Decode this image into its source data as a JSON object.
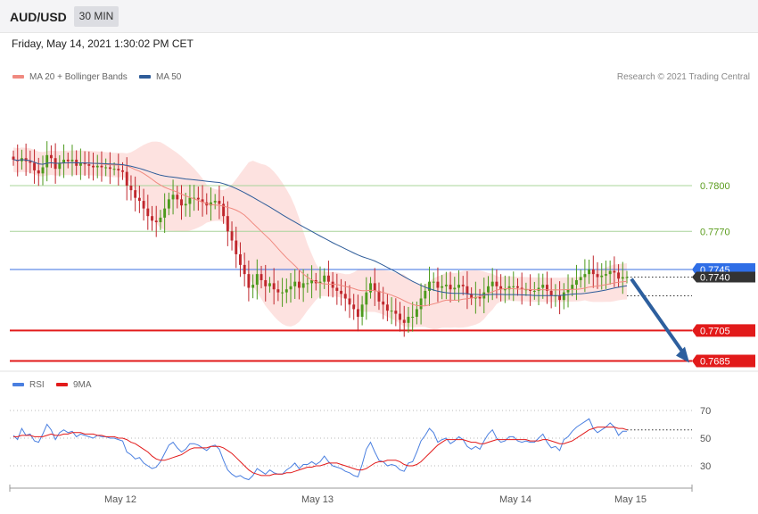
{
  "header": {
    "symbol": "AUD/USD",
    "timeframe": "30 MIN"
  },
  "datetime": "Friday, May 14, 2021 1:30:02 PM CET",
  "legend_main": [
    {
      "label": "MA 20 + Bollinger Bands",
      "color": "#f08a80",
      "icon": "ma20-swatch"
    },
    {
      "label": "MA 50",
      "color": "#2e5c99",
      "icon": "ma50-swatch"
    }
  ],
  "copyright": "Research © 2021 Trading Central",
  "legend_rsi": [
    {
      "label": "RSI",
      "color": "#4a7fe0",
      "icon": "rsi-swatch"
    },
    {
      "label": "9MA",
      "color": "#e21a1a",
      "icon": "rsi-ma-swatch"
    }
  ],
  "chart_data": [
    {
      "type": "candlestick",
      "ylim": [
        0.7682,
        0.7837
      ],
      "xlabel": "",
      "ylabel": "",
      "x_tick_labels": [
        "May 12",
        "May 13",
        "May 14",
        "May 15"
      ],
      "levels": [
        {
          "value": 0.78,
          "label": "0.7800",
          "style": "green-line"
        },
        {
          "value": 0.777,
          "label": "0.7770",
          "style": "green-line"
        },
        {
          "value": 0.7745,
          "label": "0.7745",
          "style": "current-price"
        },
        {
          "value": 0.7705,
          "label": "0.7705",
          "style": "red-line"
        },
        {
          "value": 0.7685,
          "label": "0.7685",
          "style": "red-line"
        }
      ],
      "current_price_label": "0.7740",
      "forecast_arrow": {
        "from": 0.774,
        "to": 0.7685,
        "direction": "down"
      },
      "close_series": [
        0.7817,
        0.7816,
        0.7818,
        0.7816,
        0.7815,
        0.781,
        0.7808,
        0.7812,
        0.782,
        0.7818,
        0.7811,
        0.7815,
        0.7817,
        0.7816,
        0.7817,
        0.7813,
        0.7815,
        0.7814,
        0.7813,
        0.7812,
        0.7813,
        0.7812,
        0.7812,
        0.7811,
        0.7811,
        0.781,
        0.7809,
        0.78,
        0.7797,
        0.7792,
        0.779,
        0.7785,
        0.778,
        0.7777,
        0.7776,
        0.7779,
        0.7785,
        0.7791,
        0.7794,
        0.7791,
        0.7787,
        0.7788,
        0.7792,
        0.7792,
        0.7791,
        0.7789,
        0.7787,
        0.7789,
        0.779,
        0.7788,
        0.778,
        0.777,
        0.7764,
        0.7755,
        0.7748,
        0.7742,
        0.7733,
        0.7735,
        0.7742,
        0.7738,
        0.7734,
        0.7736,
        0.7732,
        0.773,
        0.773,
        0.7732,
        0.7734,
        0.7737,
        0.7733,
        0.7736,
        0.7736,
        0.7738,
        0.7736,
        0.7737,
        0.7741,
        0.7737,
        0.7733,
        0.7731,
        0.7729,
        0.7726,
        0.7722,
        0.7719,
        0.7714,
        0.7722,
        0.773,
        0.7736,
        0.7731,
        0.7724,
        0.7722,
        0.7718,
        0.7718,
        0.7716,
        0.7712,
        0.771,
        0.7714,
        0.7714,
        0.7719,
        0.7726,
        0.7731,
        0.7737,
        0.7737,
        0.7733,
        0.7734,
        0.7735,
        0.7732,
        0.7733,
        0.7735,
        0.7734,
        0.7729,
        0.7726,
        0.7727,
        0.7726,
        0.773,
        0.7734,
        0.7737,
        0.7734,
        0.7732,
        0.7732,
        0.7734,
        0.7734,
        0.7733,
        0.7732,
        0.7732,
        0.7731,
        0.7731,
        0.7733,
        0.7735,
        0.7731,
        0.7728,
        0.7728,
        0.7725,
        0.773,
        0.7732,
        0.7735,
        0.7738,
        0.774,
        0.7742,
        0.7745,
        0.7742,
        0.774,
        0.7741,
        0.7742,
        0.7744,
        0.7743,
        0.7739,
        0.774,
        0.774
      ]
    },
    {
      "type": "line",
      "title": "RSI",
      "ylim": [
        20,
        80
      ],
      "y_tick_labels": [
        "70",
        "50",
        "30"
      ],
      "series": [
        {
          "name": "RSI",
          "values": [
            52,
            49,
            57,
            52,
            53,
            48,
            47,
            53,
            60,
            56,
            49,
            54,
            56,
            54,
            55,
            51,
            53,
            52,
            51,
            50,
            52,
            51,
            51,
            50,
            50,
            49,
            48,
            40,
            38,
            35,
            36,
            32,
            30,
            28,
            29,
            33,
            39,
            45,
            47,
            43,
            40,
            42,
            46,
            46,
            45,
            43,
            41,
            44,
            45,
            42,
            34,
            27,
            24,
            22,
            23,
            21,
            20,
            23,
            28,
            26,
            24,
            27,
            25,
            24,
            24,
            27,
            29,
            32,
            28,
            31,
            31,
            33,
            31,
            33,
            37,
            33,
            30,
            29,
            28,
            26,
            25,
            23,
            22,
            31,
            42,
            47,
            40,
            34,
            33,
            30,
            31,
            30,
            27,
            26,
            32,
            33,
            40,
            48,
            52,
            57,
            54,
            47,
            49,
            50,
            46,
            48,
            51,
            49,
            44,
            42,
            44,
            42,
            48,
            53,
            56,
            50,
            47,
            48,
            51,
            51,
            48,
            47,
            48,
            47,
            47,
            50,
            53,
            47,
            43,
            44,
            41,
            49,
            51,
            55,
            58,
            60,
            62,
            64,
            57,
            54,
            56,
            58,
            61,
            58,
            52,
            55,
            55
          ]
        },
        {
          "name": "9MA",
          "values": [
            51,
            51,
            52,
            52,
            52,
            51,
            51,
            51,
            52,
            53,
            52,
            52,
            53,
            53,
            54,
            54,
            54,
            53,
            53,
            53,
            52,
            52,
            51,
            51,
            51,
            50,
            50,
            49,
            47,
            46,
            44,
            42,
            40,
            37,
            35,
            34,
            34,
            35,
            36,
            37,
            38,
            40,
            42,
            43,
            43,
            43,
            43,
            44,
            44,
            44,
            43,
            41,
            39,
            36,
            33,
            30,
            27,
            25,
            24,
            23,
            23,
            23,
            24,
            24,
            24,
            25,
            25,
            26,
            27,
            28,
            29,
            29,
            30,
            30,
            31,
            32,
            32,
            32,
            31,
            30,
            29,
            28,
            27,
            27,
            28,
            30,
            32,
            33,
            33,
            34,
            34,
            34,
            33,
            31,
            30,
            30,
            31,
            33,
            36,
            39,
            42,
            45,
            47,
            49,
            49,
            49,
            49,
            49,
            48,
            47,
            47,
            46,
            46,
            47,
            48,
            49,
            49,
            49,
            49,
            49,
            49,
            49,
            49,
            48,
            48,
            48,
            49,
            49,
            48,
            47,
            46,
            46,
            47,
            48,
            50,
            52,
            54,
            56,
            57,
            58,
            58,
            58,
            58,
            58,
            57,
            57,
            56
          ]
        }
      ]
    }
  ]
}
